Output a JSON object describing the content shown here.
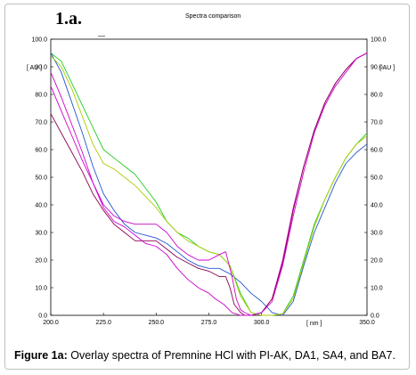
{
  "panel_label": "1.a.",
  "dash_mark": "—",
  "caption": {
    "label": "Figure 1a:",
    "text": " Overlay spectra of Premnine HCl with PI-AK, DA1, SA4, and BA7."
  },
  "chart_data": {
    "type": "line",
    "title": "Spectra comparison",
    "xlabel": "[ nm ]",
    "ylabel": "[ AU ]",
    "ylabel_right": "[ AU ]",
    "xlim": [
      200,
      350
    ],
    "ylim": [
      0,
      100
    ],
    "x_ticks": [
      "200.0",
      "225.0",
      "250.0",
      "275.0",
      "300.0",
      "350.0"
    ],
    "x_tick_values": [
      200,
      225,
      250,
      275,
      300,
      350
    ],
    "y_ticks": [
      "0.0",
      "10.0",
      "20.0",
      "30.0",
      "40.0",
      "50.0",
      "60.0",
      "70.0",
      "80.0",
      "90.0",
      "100.0"
    ],
    "grid": false,
    "colors": [
      "#22cc22",
      "#2255cc",
      "#aacc00",
      "#cc00cc",
      "#8a0050"
    ],
    "series": [
      {
        "color": "#22cc22",
        "x": [
          200,
          205,
          210,
          215,
          220,
          225,
          230,
          235,
          240,
          245,
          250,
          255,
          260,
          265,
          270,
          275,
          280,
          285,
          290,
          295,
          300,
          305,
          310,
          315,
          320,
          325,
          330,
          335,
          340,
          345,
          350
        ],
        "y": [
          95,
          92,
          84,
          76,
          68,
          60,
          57,
          54,
          51,
          46,
          41,
          34,
          30,
          28,
          25,
          23,
          22,
          18,
          8,
          1,
          0,
          0,
          0.5,
          7,
          20,
          33,
          42,
          50,
          57,
          62,
          66
        ]
      },
      {
        "color": "#2255cc",
        "x": [
          200,
          205,
          210,
          215,
          220,
          225,
          230,
          235,
          240,
          245,
          250,
          255,
          260,
          265,
          270,
          275,
          280,
          285,
          290,
          295,
          300,
          305,
          310,
          315,
          320,
          325,
          330,
          335,
          340,
          345,
          350
        ],
        "y": [
          95,
          88,
          77,
          66,
          54,
          44,
          38,
          33,
          30,
          29,
          28,
          26,
          23,
          20,
          18,
          17,
          17,
          15,
          12,
          8,
          5,
          1,
          0,
          5,
          18,
          30,
          39,
          48,
          55,
          59,
          62
        ]
      },
      {
        "color": "#aacc00",
        "x": [
          200,
          205,
          210,
          215,
          220,
          225,
          230,
          235,
          240,
          245,
          250,
          255,
          260,
          265,
          270,
          275,
          280,
          285,
          290,
          295,
          300,
          305,
          310,
          315,
          320,
          325,
          330,
          335,
          340,
          345,
          350
        ],
        "y": [
          94,
          90,
          82,
          72,
          62,
          55,
          53,
          50,
          47,
          43,
          39,
          34,
          30,
          27,
          25,
          23,
          22,
          18,
          7,
          1,
          0,
          0,
          0.5,
          6,
          19,
          32,
          42,
          50,
          57,
          62,
          65
        ]
      },
      {
        "color": "#cc00cc",
        "x": [
          200,
          205,
          210,
          215,
          220,
          225,
          230,
          235,
          240,
          245,
          250,
          255,
          260,
          265,
          270,
          275,
          280,
          283,
          286,
          288,
          290,
          292,
          295,
          300,
          305,
          310,
          315,
          320,
          325,
          330,
          335,
          340,
          345,
          350
        ],
        "y": [
          83,
          74,
          65,
          56,
          48,
          40,
          36,
          34,
          33,
          33,
          33,
          30,
          25,
          22,
          20,
          20,
          22,
          23,
          14,
          6,
          2,
          1,
          0,
          1,
          6,
          20,
          39,
          54,
          67,
          77,
          84,
          89,
          93,
          95
        ]
      },
      {
        "color": "#8a0050",
        "x": [
          200,
          205,
          210,
          215,
          220,
          225,
          230,
          235,
          240,
          245,
          250,
          255,
          260,
          265,
          270,
          275,
          280,
          283,
          285,
          287,
          290,
          292,
          295,
          300,
          305,
          310,
          315,
          320,
          325,
          330,
          335,
          340,
          345,
          350
        ],
        "y": [
          73,
          66,
          59,
          52,
          44,
          38,
          33,
          30,
          27,
          27,
          27,
          24,
          21,
          19,
          17,
          16,
          14,
          14,
          10,
          4,
          1,
          0,
          0,
          1,
          6,
          19,
          38,
          54,
          67,
          77,
          84,
          89,
          93,
          95
        ]
      },
      {
        "color": "#cc00cc",
        "x": [
          200,
          205,
          210,
          215,
          220,
          225,
          230,
          235,
          240,
          245,
          250,
          255,
          260,
          265,
          270,
          275,
          278,
          282,
          286,
          290,
          295,
          300,
          305,
          310,
          315,
          320,
          325,
          330,
          335,
          340,
          345,
          350
        ],
        "y": [
          88,
          79,
          69,
          59,
          48,
          39,
          34,
          32,
          29,
          26,
          25,
          22,
          17,
          13,
          10,
          8,
          6,
          4,
          1,
          0,
          0,
          1,
          5,
          18,
          36,
          52,
          66,
          76,
          83,
          88,
          93,
          95
        ]
      }
    ]
  }
}
